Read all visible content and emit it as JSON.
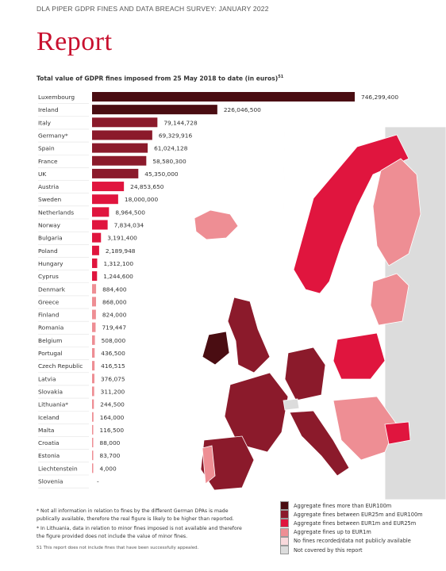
{
  "header": {
    "text": "DLA PIPER GDPR FINES AND DATA BREACH SURVEY: JANUARY 2022"
  },
  "title": "Report",
  "subtitle": "Total value of GDPR fines imposed from 25 May 2018 to date (in euros)",
  "subtitle_ref": "51",
  "colors": {
    "above_100m": "#4a0d12",
    "25m_to_100m": "#8b1a2b",
    "1m_to_25m": "#e0153e",
    "up_to_1m": "#ee8e94",
    "no_fines": "#f9d9dc",
    "not_covered": "#dcdcdc",
    "brand_red": "#c8102e"
  },
  "chart_data": {
    "type": "bar",
    "orientation": "horizontal",
    "categories": [
      "Luxembourg",
      "Ireland",
      "Italy",
      "Germany*",
      "Spain",
      "France",
      "UK",
      "Austria",
      "Sweden",
      "Netherlands",
      "Norway",
      "Bulgaria",
      "Poland",
      "Hungary",
      "Cyprus",
      "Denmark",
      "Greece",
      "Finland",
      "Romania",
      "Belgium",
      "Portugal",
      "Czech Republic",
      "Latvia",
      "Slovakia",
      "Lithuania*",
      "Iceland",
      "Malta",
      "Croatia",
      "Estonia",
      "Liechtenstein",
      "Slovenia"
    ],
    "values": [
      746299400,
      226046500,
      79144728,
      69329916,
      61024128,
      58580300,
      45350000,
      24853650,
      18000000,
      8964500,
      7834034,
      3191400,
      2189948,
      1312100,
      1244600,
      884400,
      868000,
      824000,
      719447,
      508000,
      436500,
      416515,
      376075,
      311200,
      244500,
      164000,
      116500,
      88000,
      83700,
      4000,
      null
    ],
    "value_labels": [
      "746,299,400",
      "226,046,500",
      "79,144,728",
      "69,329,916",
      "61,024,128",
      "58,580,300",
      "45,350,000",
      "24,853,650",
      "18,000,000",
      "8,964,500",
      "7,834,034",
      "3,191,400",
      "2,189,948",
      "1,312,100",
      "1,244,600",
      "884,400",
      "868,000",
      "824,000",
      "719,447",
      "508,000",
      "436,500",
      "416,515",
      "376,075",
      "311,200",
      "244,500",
      "164,000",
      "116,500",
      "88,000",
      "83,700",
      "4,000",
      "-"
    ],
    "xlabel": "",
    "ylabel": "",
    "grid": false,
    "legend": "bottom-right"
  },
  "legend": {
    "items": [
      {
        "label": "Aggregate fines more than EUR100m",
        "color": "#4a0d12"
      },
      {
        "label": "Aggregate fines between EUR25m and EUR100m",
        "color": "#8b1a2b"
      },
      {
        "label": "Aggregate fines between EUR1m and EUR25m",
        "color": "#e0153e"
      },
      {
        "label": "Aggregate fines up to EUR1m",
        "color": "#ee8e94"
      },
      {
        "label": "No fines recorded/data not publicly available",
        "color": "#f9d9dc"
      },
      {
        "label": "Not covered by this report",
        "color": "#dcdcdc"
      }
    ]
  },
  "footnotes": {
    "note1": "* Not all information in relation to fines by the different German DPAs is made publically available, therefore the real figure is likely to be higher than reported.",
    "note2": "* In Lithuania, data in relation to minor fines imposed is not available and therefore the figure provided does not include the value of minor fines.",
    "note3": "51   This report does not include fines that have been successfully appealed."
  }
}
